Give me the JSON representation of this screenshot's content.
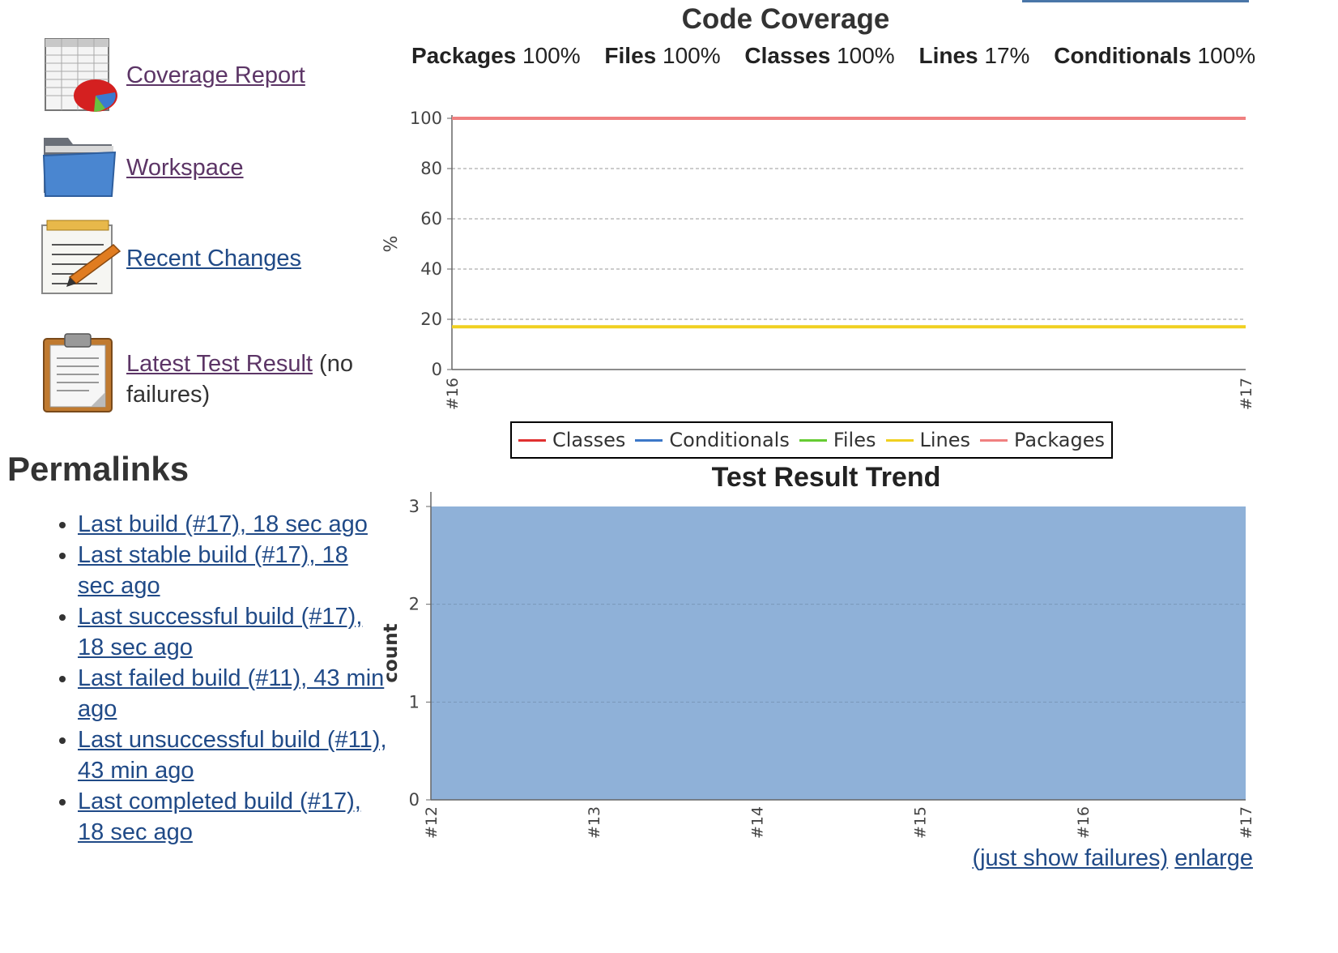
{
  "tasks": [
    {
      "label": "Coverage Report",
      "suffix": "",
      "icon": "coverage-report-icon"
    },
    {
      "label": "Workspace",
      "suffix": "",
      "icon": "folder-icon"
    },
    {
      "label": "Recent Changes",
      "suffix": "",
      "icon": "notepad-icon"
    },
    {
      "label": "Latest Test Result",
      "suffix": " (no failures)",
      "icon": "clipboard-icon"
    }
  ],
  "permalinks": {
    "title": "Permalinks",
    "items": [
      "Last build (#17), 18 sec ago",
      "Last stable build (#17), 18 sec ago",
      "Last successful build (#17), 18 sec ago",
      "Last failed build (#11), 43 min ago",
      "Last unsuccessful build (#11), 43 min ago",
      "Last completed build (#17), 18 sec ago"
    ]
  },
  "coverage": {
    "title": "Code Coverage",
    "summary": [
      {
        "name": "Packages",
        "value": "100%"
      },
      {
        "name": "Files",
        "value": "100%"
      },
      {
        "name": "Classes",
        "value": "100%"
      },
      {
        "name": "Lines",
        "value": "17%"
      },
      {
        "name": "Conditionals",
        "value": "100%"
      }
    ]
  },
  "test_trend": {
    "title": "Test Result Trend",
    "links": {
      "failures": "(just show failures)",
      "enlarge": "enlarge"
    }
  },
  "chart_data": [
    {
      "type": "line",
      "title": "Code Coverage",
      "xlabel": "",
      "ylabel": "%",
      "categories": [
        "#16",
        "#17"
      ],
      "ylim": [
        0,
        100
      ],
      "yticks": [
        0,
        20,
        40,
        60,
        80,
        100
      ],
      "grid": true,
      "legend": "bottom",
      "series": [
        {
          "name": "Classes",
          "color": "#e03030",
          "values": [
            100,
            100
          ]
        },
        {
          "name": "Conditionals",
          "color": "#3c78c8",
          "values": [
            100,
            100
          ]
        },
        {
          "name": "Files",
          "color": "#66cc33",
          "values": [
            100,
            100
          ]
        },
        {
          "name": "Lines",
          "color": "#f0d020",
          "values": [
            17,
            17
          ]
        },
        {
          "name": "Packages",
          "color": "#f08080",
          "values": [
            100,
            100
          ]
        }
      ]
    },
    {
      "type": "area",
      "title": "Test Result Trend",
      "xlabel": "",
      "ylabel": "count",
      "categories": [
        "#12",
        "#13",
        "#14",
        "#15",
        "#16",
        "#17"
      ],
      "ylim": [
        0,
        3
      ],
      "yticks": [
        0,
        1,
        2,
        3
      ],
      "grid": true,
      "series": [
        {
          "name": "",
          "color": "#8fb1d8",
          "values": [
            3,
            3,
            3,
            3,
            3,
            3
          ]
        }
      ]
    }
  ]
}
